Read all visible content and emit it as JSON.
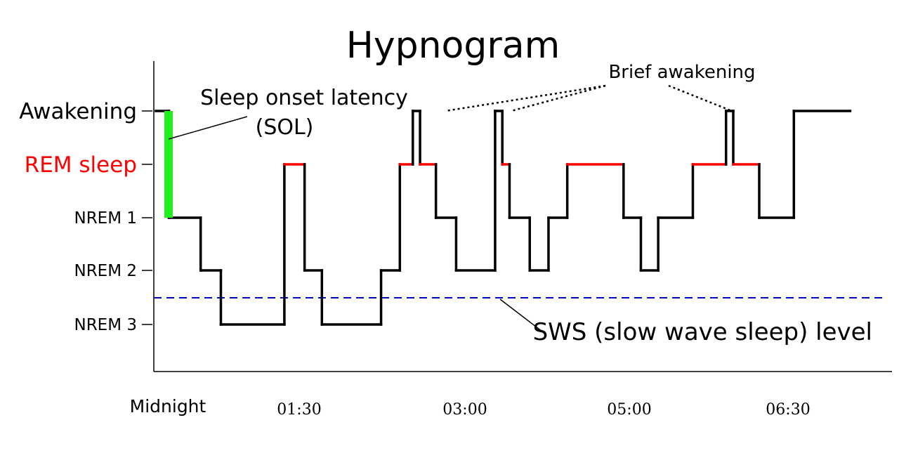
{
  "chart_data": {
    "type": "line",
    "title": "Hypnogram",
    "xlabel": "",
    "ylabel": "",
    "stages": [
      "Awakening",
      "REM sleep",
      "NREM 1",
      "NREM 2",
      "NREM 3"
    ],
    "stage_colors": {
      "REM sleep": "#ff0000"
    },
    "x_ticks": [
      "Midnight",
      "01:30",
      "03:00",
      "05:00",
      "06:30"
    ],
    "x_unit": "minutes after midnight (approx.)",
    "sws_level_label": "SWS (slow wave sleep) level",
    "annotations": {
      "sol": [
        "Sleep onset latency",
        "(SOL)"
      ],
      "brief_awakening": "Brief awakening"
    },
    "colors": {
      "trace": "#000000",
      "rem": "#ff0000",
      "sol": "#22ee22",
      "sws_line": "#0000cc"
    },
    "series": [
      {
        "points": [
          [
            0,
            "Awakening"
          ],
          [
            9,
            "Awakening"
          ],
          [
            9,
            "NREM 1"
          ],
          [
            31,
            "NREM 1"
          ],
          [
            31,
            "NREM 2"
          ],
          [
            45,
            "NREM 2"
          ],
          [
            45,
            "NREM 3"
          ],
          [
            89,
            "NREM 3"
          ],
          [
            89,
            "REM sleep"
          ],
          [
            103,
            "REM sleep"
          ],
          [
            103,
            "NREM 2"
          ],
          [
            115,
            "NREM 2"
          ],
          [
            115,
            "NREM 3"
          ],
          [
            156,
            "NREM 3"
          ],
          [
            156,
            "NREM 2"
          ],
          [
            169,
            "NREM 2"
          ],
          [
            169,
            "REM sleep"
          ],
          [
            178,
            "REM sleep"
          ],
          [
            178,
            "Awakening"
          ],
          [
            183,
            "Awakening"
          ],
          [
            183,
            "REM sleep"
          ],
          [
            194,
            "REM sleep"
          ],
          [
            194,
            "NREM 1"
          ],
          [
            208,
            "NREM 1"
          ],
          [
            208,
            "NREM 2"
          ],
          [
            235,
            "NREM 2"
          ],
          [
            235,
            "Awakening"
          ],
          [
            240,
            "Awakening"
          ],
          [
            240,
            "REM sleep"
          ],
          [
            245,
            "REM sleep"
          ],
          [
            245,
            "NREM 1"
          ],
          [
            259,
            "NREM 1"
          ],
          [
            259,
            "NREM 2"
          ],
          [
            272,
            "NREM 2"
          ],
          [
            272,
            "NREM 1"
          ],
          [
            285,
            "NREM 1"
          ],
          [
            285,
            "REM sleep"
          ],
          [
            324,
            "REM sleep"
          ],
          [
            324,
            "NREM 1"
          ],
          [
            336,
            "NREM 1"
          ],
          [
            336,
            "NREM 2"
          ],
          [
            348,
            "NREM 2"
          ],
          [
            348,
            "NREM 1"
          ],
          [
            372,
            "NREM 1"
          ],
          [
            372,
            "REM sleep"
          ],
          [
            395,
            "REM sleep"
          ],
          [
            395,
            "Awakening"
          ],
          [
            400,
            "Awakening"
          ],
          [
            400,
            "REM sleep"
          ],
          [
            418,
            "REM sleep"
          ],
          [
            418,
            "NREM 1"
          ],
          [
            442,
            "NREM 1"
          ],
          [
            442,
            "Awakening"
          ],
          [
            481,
            "Awakening"
          ]
        ]
      }
    ],
    "sol_interval": [
      2,
      9
    ],
    "brief_awakenings_at": [
      180,
      237,
      397
    ]
  }
}
